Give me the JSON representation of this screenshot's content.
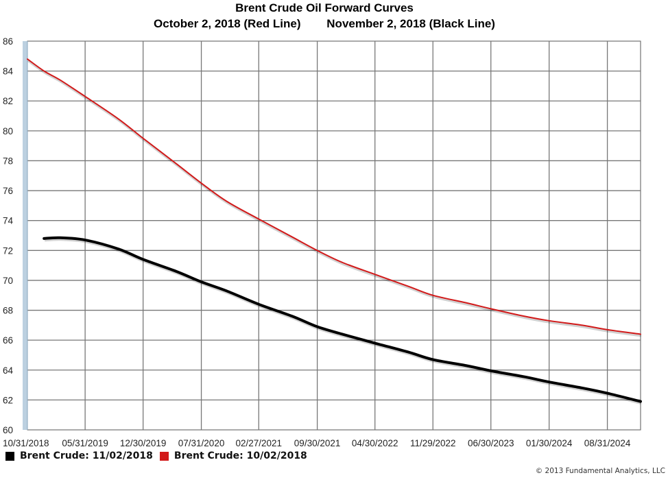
{
  "chart_data": {
    "type": "line",
    "title": "Brent Crude Oil Forward Curves",
    "subtitle": "October 2, 2018 (Red Line)        November 2, 2018 (Black Line)",
    "xlabel": "",
    "ylabel": "",
    "x_ticks": [
      "10/31/2018",
      "05/31/2019",
      "12/30/2019",
      "07/31/2020",
      "02/27/2021",
      "09/30/2021",
      "04/30/2022",
      "11/29/2022",
      "06/30/2023",
      "01/30/2024",
      "08/31/2024"
    ],
    "y_ticks": [
      60,
      62,
      64,
      66,
      68,
      70,
      72,
      74,
      76,
      78,
      80,
      82,
      84,
      86
    ],
    "ylim": [
      60,
      86
    ],
    "xlim": [
      "10/31/2018",
      "12/31/2024"
    ],
    "grid": true,
    "legend_position": "bottom-left",
    "series": [
      {
        "name": "Brent Crude: 11/02/2018",
        "color": "#000000",
        "x": [
          "12/31/2018",
          "02/28/2019",
          "05/31/2019",
          "09/30/2019",
          "12/30/2019",
          "04/30/2020",
          "07/31/2020",
          "10/31/2020",
          "02/27/2021",
          "06/30/2021",
          "09/30/2021",
          "12/31/2021",
          "04/30/2022",
          "08/31/2022",
          "11/29/2022",
          "03/31/2023",
          "06/30/2023",
          "10/31/2023",
          "01/30/2024",
          "05/31/2024",
          "08/31/2024",
          "12/31/2024"
        ],
        "values": [
          72.8,
          72.85,
          72.7,
          72.1,
          71.4,
          70.6,
          69.9,
          69.3,
          68.4,
          67.6,
          66.9,
          66.4,
          65.8,
          65.2,
          64.7,
          64.3,
          63.95,
          63.55,
          63.2,
          62.8,
          62.45,
          61.9
        ]
      },
      {
        "name": "Brent Crude: 10/02/2018",
        "color": "#d21a1a",
        "x": [
          "10/31/2018",
          "12/31/2018",
          "02/28/2019",
          "05/31/2019",
          "09/30/2019",
          "12/30/2019",
          "04/30/2020",
          "07/31/2020",
          "10/31/2020",
          "02/27/2021",
          "06/30/2021",
          "09/30/2021",
          "12/31/2021",
          "04/30/2022",
          "08/31/2022",
          "11/29/2022",
          "03/31/2023",
          "06/30/2023",
          "10/31/2023",
          "01/30/2024",
          "05/31/2024",
          "08/31/2024",
          "12/31/2024"
        ],
        "values": [
          84.8,
          84.0,
          83.4,
          82.3,
          80.8,
          79.5,
          77.8,
          76.5,
          75.3,
          74.1,
          72.9,
          72.0,
          71.2,
          70.4,
          69.6,
          69.0,
          68.5,
          68.1,
          67.6,
          67.3,
          67.0,
          66.7,
          66.4
        ]
      }
    ]
  },
  "legend": {
    "items": [
      {
        "label": "Brent Crude: 11/02/2018",
        "color": "#000000"
      },
      {
        "label": "Brent Crude: 10/02/2018",
        "color": "#d21a1a"
      }
    ]
  },
  "footer": {
    "copyright": "© 2013 Fundamental Analytics, LLC"
  }
}
